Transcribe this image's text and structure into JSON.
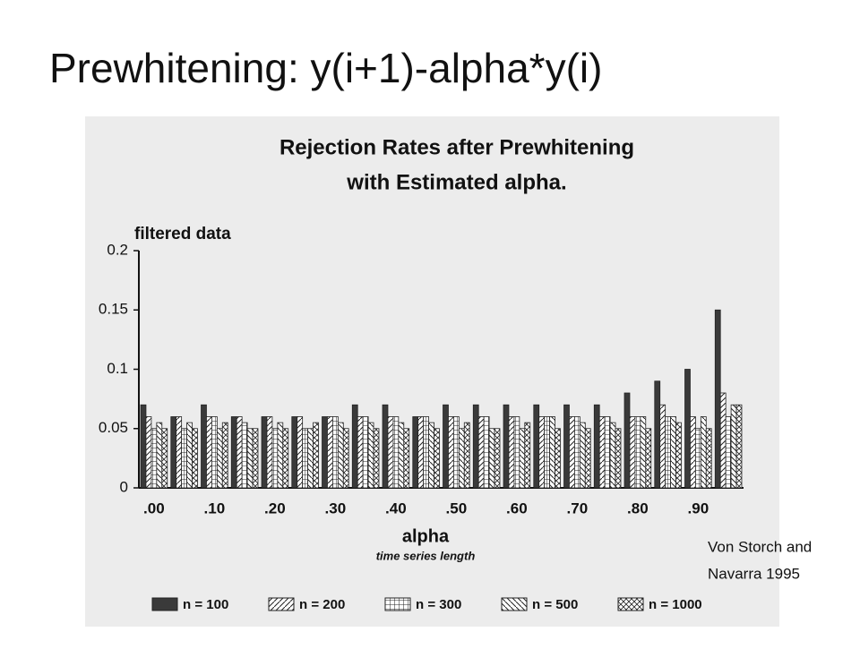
{
  "slide_title": "Prewhitening: y(i+1)-alpha*y(i)",
  "citation": [
    "Von Storch and",
    "Navarra 1995"
  ],
  "chart_data": {
    "type": "bar",
    "title": [
      "Rejection Rates after Prewhitening",
      "with Estimated alpha."
    ],
    "ylabel": "filtered data",
    "xlabel": "alpha",
    "legend_title": "time series length",
    "categories": [
      ".00",
      null,
      ".10",
      null,
      ".20",
      null,
      ".30",
      null,
      ".40",
      null,
      ".50",
      null,
      ".60",
      null,
      ".70",
      null,
      ".80",
      null,
      ".90",
      null
    ],
    "ylim": [
      0,
      0.2
    ],
    "yticks": [
      0,
      0.05,
      0.1,
      0.15,
      0.2
    ],
    "series": [
      {
        "name": "n = 100",
        "color": "#3a3a3a",
        "hatch": "solid",
        "values": [
          0.07,
          0.06,
          0.07,
          0.06,
          0.06,
          0.06,
          0.06,
          0.07,
          0.07,
          0.06,
          0.07,
          0.07,
          0.07,
          0.07,
          0.07,
          0.07,
          0.08,
          0.09,
          0.1,
          0.15
        ]
      },
      {
        "name": "n = 200",
        "color": "#222222",
        "hatch": "diagonal",
        "values": [
          0.06,
          0.06,
          0.06,
          0.06,
          0.06,
          0.06,
          0.06,
          0.06,
          0.06,
          0.06,
          0.06,
          0.06,
          0.06,
          0.06,
          0.06,
          0.06,
          0.06,
          0.07,
          0.06,
          0.08
        ]
      },
      {
        "name": "n = 300",
        "color": "#222222",
        "hatch": "grid",
        "values": [
          0.05,
          0.05,
          0.06,
          0.055,
          0.05,
          0.05,
          0.06,
          0.06,
          0.06,
          0.06,
          0.06,
          0.06,
          0.06,
          0.06,
          0.06,
          0.06,
          0.06,
          0.06,
          0.05,
          0.06
        ]
      },
      {
        "name": "n = 500",
        "color": "#222222",
        "hatch": "backdiagonal",
        "values": [
          0.055,
          0.055,
          0.05,
          0.05,
          0.055,
          0.05,
          0.055,
          0.055,
          0.055,
          0.055,
          0.05,
          0.05,
          0.05,
          0.06,
          0.055,
          0.055,
          0.06,
          0.06,
          0.06,
          0.07
        ]
      },
      {
        "name": "n = 1000",
        "color": "#222222",
        "hatch": "cross",
        "values": [
          0.05,
          0.05,
          0.055,
          0.05,
          0.05,
          0.055,
          0.05,
          0.05,
          0.05,
          0.05,
          0.055,
          0.05,
          0.055,
          0.05,
          0.05,
          0.05,
          0.05,
          0.055,
          0.05,
          0.07
        ]
      }
    ]
  }
}
